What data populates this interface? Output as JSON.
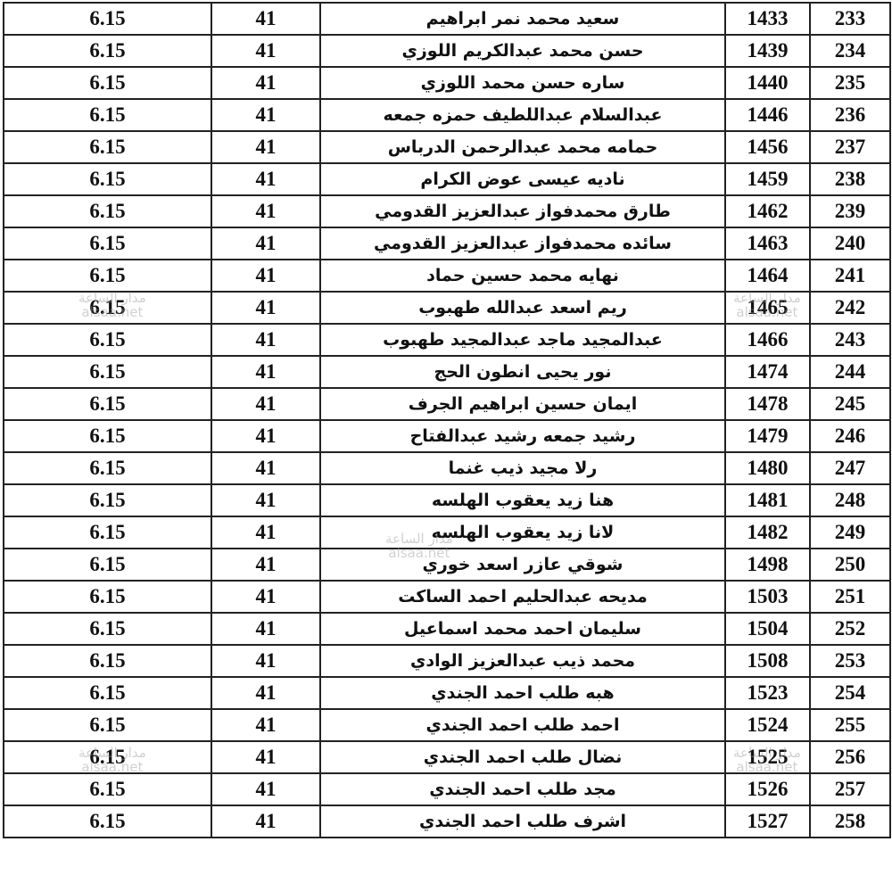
{
  "table": {
    "rows": [
      [
        "233",
        "1433",
        "سعيد محمد نمر ابراهيم",
        "41",
        "6.15"
      ],
      [
        "234",
        "1439",
        "حسن محمد عبدالكريم اللوزي",
        "41",
        "6.15"
      ],
      [
        "235",
        "1440",
        "ساره حسن محمد اللوزي",
        "41",
        "6.15"
      ],
      [
        "236",
        "1446",
        "عبدالسلام عبداللطيف حمزه جمعه",
        "41",
        "6.15"
      ],
      [
        "237",
        "1456",
        "حمامه محمد عبدالرحمن الدرباس",
        "41",
        "6.15"
      ],
      [
        "238",
        "1459",
        "ناديه عيسى عوض الكرام",
        "41",
        "6.15"
      ],
      [
        "239",
        "1462",
        "طارق محمدفواز عبدالعزيز القدومي",
        "41",
        "6.15"
      ],
      [
        "240",
        "1463",
        "سائده محمدفواز عبدالعزيز القدومي",
        "41",
        "6.15"
      ],
      [
        "241",
        "1464",
        "نهايه محمد حسين حماد",
        "41",
        "6.15"
      ],
      [
        "242",
        "1465",
        "ريم اسعد عبدالله طهبوب",
        "41",
        "6.15"
      ],
      [
        "243",
        "1466",
        "عبدالمجيد ماجد عبدالمجيد طهبوب",
        "41",
        "6.15"
      ],
      [
        "244",
        "1474",
        "نور يحيى انطون الحج",
        "41",
        "6.15"
      ],
      [
        "245",
        "1478",
        "ايمان حسين ابراهيم الجرف",
        "41",
        "6.15"
      ],
      [
        "246",
        "1479",
        "رشيد جمعه رشيد عبدالفتاح",
        "41",
        "6.15"
      ],
      [
        "247",
        "1480",
        "رلا مجيد ذيب غنما",
        "41",
        "6.15"
      ],
      [
        "248",
        "1481",
        "هنا زيد يعقوب الهلسه",
        "41",
        "6.15"
      ],
      [
        "249",
        "1482",
        "لانا زيد يعقوب الهلسه",
        "41",
        "6.15"
      ],
      [
        "250",
        "1498",
        "شوقي عازر اسعد خوري",
        "41",
        "6.15"
      ],
      [
        "251",
        "1503",
        "مديحه عبدالحليم احمد الساكت",
        "41",
        "6.15"
      ],
      [
        "252",
        "1504",
        "سليمان احمد محمد اسماعيل",
        "41",
        "6.15"
      ],
      [
        "253",
        "1508",
        "محمد ذيب عبدالعزيز الوادي",
        "41",
        "6.15"
      ],
      [
        "254",
        "1523",
        "هبه طلب احمد الجندي",
        "41",
        "6.15"
      ],
      [
        "255",
        "1524",
        "احمد طلب احمد الجندي",
        "41",
        "6.15"
      ],
      [
        "256",
        "1525",
        "نضال طلب احمد الجندي",
        "41",
        "6.15"
      ],
      [
        "257",
        "1526",
        "مجد طلب احمد الجندي",
        "41",
        "6.15"
      ],
      [
        "258",
        "1527",
        "اشرف طلب احمد الجندي",
        "41",
        "6.15"
      ]
    ]
  },
  "watermark": {
    "arabic": "مدار الساعة",
    "latin": "alsaa.net"
  }
}
